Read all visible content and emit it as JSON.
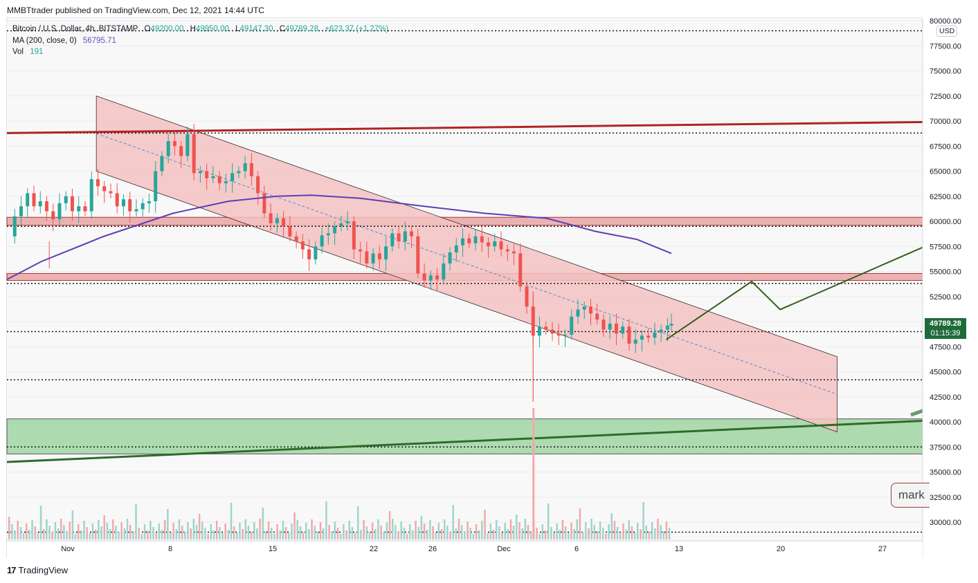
{
  "header": {
    "publish_line": "MMBTtrader published on TradingView.com, Dec 12, 2021 14:44 UTC"
  },
  "legend": {
    "symbol": "Bitcoin / U.S. Dollar, 4h, BITSTAMP",
    "o_label": "O",
    "o_val": "49200.00",
    "h_label": "H",
    "h_val": "49950.00",
    "l_label": "L",
    "l_val": "49147.30",
    "c_label": "C",
    "c_val": "49789.28",
    "change": "+623.37 (+1.27%)",
    "ma_label": "MA (200, close, 0)",
    "ma_val": "56795.71",
    "vol_label": "Vol",
    "vol_val": "191"
  },
  "price_scale": {
    "currency": "USD",
    "last_price": "49789.28",
    "countdown": "01:15:39"
  },
  "mark_tag": "mark",
  "footer": {
    "brand": "TradingView",
    "icon": "tradingview-logo-icon"
  },
  "colors": {
    "up": "#26a69a",
    "down": "#ef5350",
    "ma": "#5b3fb5",
    "resistance": "#b22222",
    "support": "#2e7d32",
    "channel_fill": "#f4c2c2",
    "zone_red": "#e8a0a0",
    "zone_green": "#a5d6a7"
  },
  "chart_data": {
    "type": "candlestick",
    "symbol": "Bitcoin / U.S. Dollar",
    "interval": "4h",
    "ylim": [
      28000,
      80500
    ],
    "y_ticks": [
      30000,
      32500,
      35000,
      37500,
      40000,
      42500,
      45000,
      47500,
      50000,
      52500,
      55000,
      57500,
      60000,
      62500,
      65000,
      67500,
      70000,
      72500,
      75000,
      77500,
      80000
    ],
    "x_ticks": [
      "Nov",
      "8",
      "15",
      "22",
      "26",
      "Dec",
      "6",
      "13",
      "20",
      "27"
    ],
    "dotted_levels": [
      79000,
      68800,
      59500,
      53800,
      49000,
      44200,
      37500,
      29000
    ],
    "zones": [
      {
        "type": "resistance",
        "from": 59600,
        "to": 60400
      },
      {
        "type": "resistance",
        "from": 54100,
        "to": 54800
      },
      {
        "type": "support",
        "from": 36800,
        "to": 40300
      }
    ],
    "trendlines": [
      {
        "type": "resistance",
        "from": [
          "Nov 1",
          68800
        ],
        "to": [
          "Dec 31",
          69900
        ]
      },
      {
        "type": "support",
        "from": [
          "Nov 1",
          36000
        ],
        "to": [
          "Dec 31",
          40100
        ]
      }
    ],
    "channel": {
      "upper": [
        [
          "Nov 3",
          72500
        ],
        [
          "Dec 25",
          46500
        ]
      ],
      "lower": [
        [
          "Nov 3",
          65000
        ],
        [
          "Dec 25",
          39000
        ]
      ]
    },
    "projection": [
      [
        "Dec 13",
        48200
      ],
      [
        "Dec 19",
        54000
      ],
      [
        "Dec 21",
        51200
      ],
      [
        "Dec 31",
        57400
      ]
    ],
    "ma_period": 200,
    "last_close": 49789.28
  }
}
